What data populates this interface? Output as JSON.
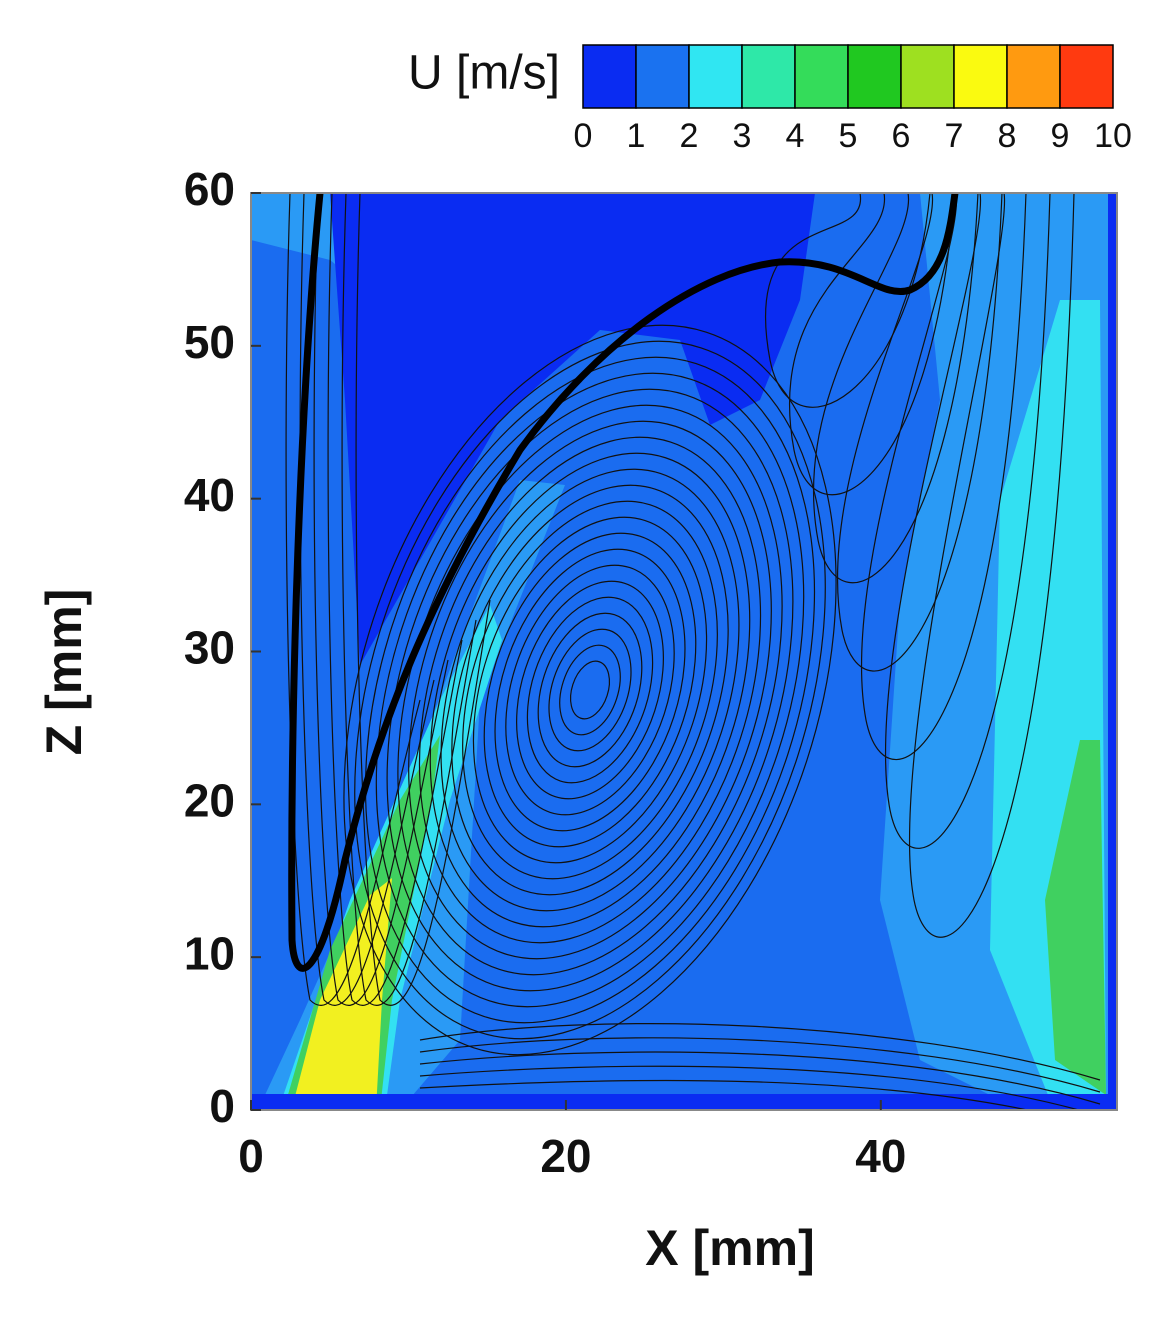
{
  "chart_data": {
    "type": "contour",
    "colorbar": {
      "label": "U [m/s]",
      "lim": [
        0,
        10
      ],
      "ticks": [
        0,
        1,
        2,
        3,
        4,
        5,
        6,
        7,
        8,
        9,
        10
      ],
      "colors": [
        "#0a2cf2",
        "#1a72f0",
        "#30e6f2",
        "#2ee8a8",
        "#34dc5a",
        "#20c820",
        "#9ee020",
        "#fafa10",
        "#ff9a10",
        "#ff3a10"
      ]
    },
    "xlabel": "X [mm]",
    "ylabel": "Z [mm]",
    "xlim": [
      0,
      55
    ],
    "xticks": [
      0,
      20,
      40
    ],
    "ylim": [
      0,
      60
    ],
    "yticks": [
      0,
      10,
      20,
      30,
      40,
      50,
      60
    ]
  }
}
